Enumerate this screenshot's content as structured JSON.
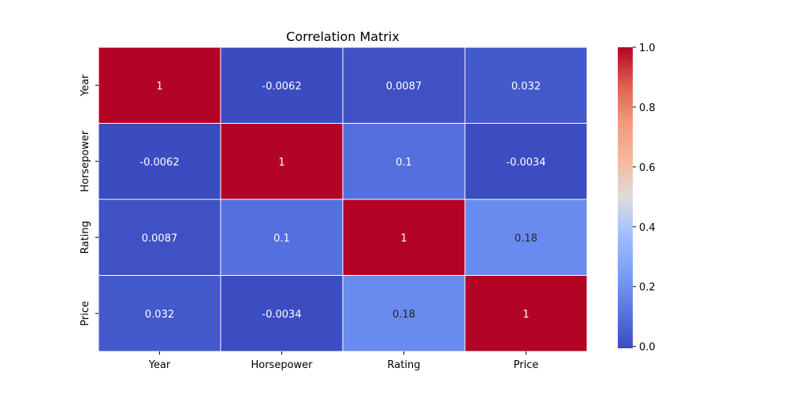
{
  "chart_data": {
    "type": "heatmap",
    "title": "Correlation Matrix",
    "x_labels": [
      "Year",
      "Horsepower",
      "Rating",
      "Price"
    ],
    "y_labels": [
      "Year",
      "Horsepower",
      "Rating",
      "Price"
    ],
    "values": [
      [
        1,
        -0.0062,
        0.0087,
        0.032
      ],
      [
        -0.0062,
        1,
        0.1,
        -0.0034
      ],
      [
        0.0087,
        0.1,
        1,
        0.18
      ],
      [
        0.032,
        -0.0034,
        0.18,
        1
      ]
    ],
    "annotations": [
      [
        "1",
        "-0.0062",
        "0.0087",
        "0.032"
      ],
      [
        "-0.0062",
        "1",
        "0.1",
        "-0.0034"
      ],
      [
        "0.0087",
        "0.1",
        "1",
        "0.18"
      ],
      [
        "0.032",
        "-0.0034",
        "0.18",
        "1"
      ]
    ],
    "colormap": "coolwarm",
    "color_range": [
      -0.0062,
      1
    ],
    "colorbar": {
      "ticks": [
        0.0,
        0.2,
        0.4,
        0.6,
        0.8,
        1.0
      ],
      "tick_labels": [
        "0.0",
        "0.2",
        "0.4",
        "0.6",
        "0.8",
        "1.0"
      ]
    },
    "grid_lines_color": "#ffffff"
  }
}
